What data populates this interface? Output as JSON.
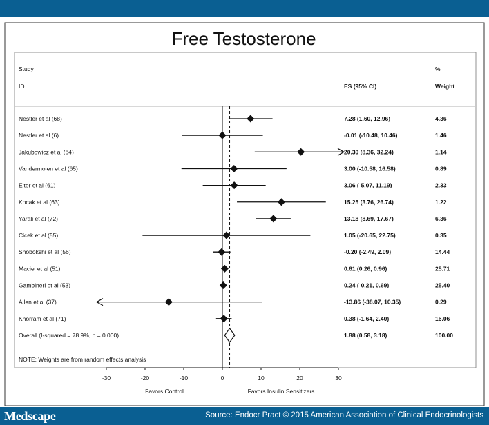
{
  "branding": {
    "logo_text": "Medscape",
    "source_text": "Source: Endocr Pract © 2015 American Association of Clinical Endocrinologists"
  },
  "colors": {
    "bar": "#0a5f92",
    "ink": "#111111",
    "dashed": "#111111"
  },
  "chart_data": {
    "type": "forest",
    "title": "Free Testosterone",
    "columns": {
      "study_header_1": "Study",
      "study_header_2": "ID",
      "es_header": "ES (95% CI)",
      "weight_header_1": "%",
      "weight_header_2": "Weight"
    },
    "xlim": [
      -30,
      30
    ],
    "xticks": [
      -30,
      -20,
      -10,
      0,
      10,
      20,
      30
    ],
    "xlabel_left": "Favors Control",
    "xlabel_right": "Favors Insulin Sensitizers",
    "note": "NOTE: Weights are from random effects analysis",
    "overall_line": 1.88,
    "studies": [
      {
        "label": "Nestler et al (68)",
        "es": 7.28,
        "lo": 1.6,
        "hi": 12.96,
        "es_text": "7.28 (1.60, 12.96)",
        "weight": "4.36"
      },
      {
        "label": "Nestler et al (6)",
        "es": -0.01,
        "lo": -10.48,
        "hi": 10.46,
        "es_text": "-0.01 (-10.48, 10.46)",
        "weight": "1.46"
      },
      {
        "label": "Jakubowicz et al (64)",
        "es": 20.3,
        "lo": 8.36,
        "hi": 32.24,
        "es_text": "20.30 (8.36, 32.24)",
        "weight": "1.14"
      },
      {
        "label": "Vandermolen et al (65)",
        "es": 3.0,
        "lo": -10.58,
        "hi": 16.58,
        "es_text": "3.00 (-10.58, 16.58)",
        "weight": "0.89"
      },
      {
        "label": "Elter et al (61)",
        "es": 3.06,
        "lo": -5.07,
        "hi": 11.19,
        "es_text": "3.06 (-5.07, 11.19)",
        "weight": "2.33"
      },
      {
        "label": "Kocak et al (63)",
        "es": 15.25,
        "lo": 3.76,
        "hi": 26.74,
        "es_text": "15.25 (3.76, 26.74)",
        "weight": "1.22"
      },
      {
        "label": "Yarali et al (72)",
        "es": 13.18,
        "lo": 8.69,
        "hi": 17.67,
        "es_text": "13.18 (8.69, 17.67)",
        "weight": "6.36"
      },
      {
        "label": "Cicek et al (55)",
        "es": 1.05,
        "lo": -20.65,
        "hi": 22.75,
        "es_text": "1.05 (-20.65, 22.75)",
        "weight": "0.35"
      },
      {
        "label": "Shobokshi et al (56)",
        "es": -0.2,
        "lo": -2.49,
        "hi": 2.09,
        "es_text": "-0.20 (-2.49, 2.09)",
        "weight": "14.44"
      },
      {
        "label": "Maciel et al (51)",
        "es": 0.61,
        "lo": 0.26,
        "hi": 0.96,
        "es_text": "0.61 (0.26, 0.96)",
        "weight": "25.71"
      },
      {
        "label": "Gambineri et al (53)",
        "es": 0.24,
        "lo": -0.21,
        "hi": 0.69,
        "es_text": "0.24 (-0.21, 0.69)",
        "weight": "25.40"
      },
      {
        "label": "Allen et al (37)",
        "es": -13.86,
        "lo": -38.07,
        "hi": 10.35,
        "es_text": "-13.86 (-38.07, 10.35)",
        "weight": "0.29"
      },
      {
        "label": "Khorram et al (71)",
        "es": 0.38,
        "lo": -1.64,
        "hi": 2.4,
        "es_text": "0.38 (-1.64, 2.40)",
        "weight": "16.06"
      }
    ],
    "overall": {
      "label": "Overall  (I-squared = 78.9%, p = 0.000)",
      "es": 1.88,
      "lo": 0.58,
      "hi": 3.18,
      "es_text": "1.88 (0.58, 3.18)",
      "weight": "100.00"
    }
  }
}
